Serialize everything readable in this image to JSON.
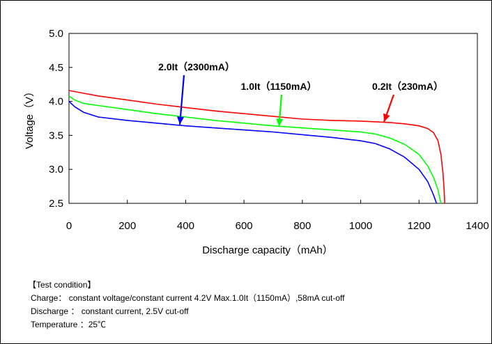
{
  "chart_data": {
    "type": "line",
    "title": "",
    "xlabel": "Discharge capacity（mAh）",
    "ylabel": "Voltage（V）",
    "xlim": [
      0,
      1400
    ],
    "ylim": [
      2.5,
      5.0
    ],
    "x_ticks": [
      0,
      200,
      400,
      600,
      800,
      1000,
      1200,
      1400
    ],
    "y_ticks": [
      "2.5",
      "3.0",
      "3.5",
      "4.0",
      "4.5",
      "5.0"
    ],
    "grid": false,
    "series": [
      {
        "name": "0.2It（230mA）",
        "color": "#ff0000",
        "points": [
          [
            0,
            4.16
          ],
          [
            50,
            4.12
          ],
          [
            100,
            4.08
          ],
          [
            200,
            4.02
          ],
          [
            300,
            3.96
          ],
          [
            400,
            3.91
          ],
          [
            500,
            3.86
          ],
          [
            600,
            3.82
          ],
          [
            700,
            3.78
          ],
          [
            800,
            3.74
          ],
          [
            900,
            3.72
          ],
          [
            1000,
            3.71
          ],
          [
            1100,
            3.69
          ],
          [
            1150,
            3.67
          ],
          [
            1200,
            3.64
          ],
          [
            1230,
            3.6
          ],
          [
            1250,
            3.54
          ],
          [
            1265,
            3.42
          ],
          [
            1275,
            3.22
          ],
          [
            1282,
            2.95
          ],
          [
            1286,
            2.7
          ],
          [
            1288,
            2.5
          ]
        ]
      },
      {
        "name": "1.0It（1150mA）",
        "color": "#00ff00",
        "points": [
          [
            0,
            4.08
          ],
          [
            20,
            4.02
          ],
          [
            50,
            3.97
          ],
          [
            100,
            3.94
          ],
          [
            200,
            3.88
          ],
          [
            300,
            3.82
          ],
          [
            400,
            3.77
          ],
          [
            500,
            3.72
          ],
          [
            600,
            3.68
          ],
          [
            700,
            3.64
          ],
          [
            800,
            3.61
          ],
          [
            900,
            3.58
          ],
          [
            1000,
            3.55
          ],
          [
            1050,
            3.52
          ],
          [
            1100,
            3.46
          ],
          [
            1150,
            3.37
          ],
          [
            1200,
            3.22
          ],
          [
            1230,
            3.05
          ],
          [
            1250,
            2.88
          ],
          [
            1265,
            2.7
          ],
          [
            1275,
            2.5
          ]
        ]
      },
      {
        "name": "2.0It（2300mA）",
        "color": "#0000ff",
        "points": [
          [
            0,
            4.0
          ],
          [
            20,
            3.92
          ],
          [
            50,
            3.84
          ],
          [
            100,
            3.77
          ],
          [
            200,
            3.72
          ],
          [
            300,
            3.68
          ],
          [
            400,
            3.64
          ],
          [
            500,
            3.61
          ],
          [
            600,
            3.58
          ],
          [
            700,
            3.55
          ],
          [
            800,
            3.51
          ],
          [
            900,
            3.47
          ],
          [
            1000,
            3.42
          ],
          [
            1050,
            3.38
          ],
          [
            1100,
            3.3
          ],
          [
            1150,
            3.18
          ],
          [
            1200,
            3.0
          ],
          [
            1230,
            2.82
          ],
          [
            1250,
            2.62
          ],
          [
            1260,
            2.5
          ]
        ]
      }
    ],
    "annotations": [
      {
        "text": "2.0It（2300mA）",
        "color": "#0000ff",
        "target": [
          380,
          3.66
        ]
      },
      {
        "text": "1.0It（1150mA）",
        "color": "#00ff00",
        "target": [
          720,
          3.63
        ]
      },
      {
        "text": "0.2It（230mA）",
        "color": "#ff0000",
        "target": [
          1080,
          3.7
        ]
      }
    ]
  },
  "conditions": {
    "heading": "【Test condition】",
    "charge": "Charge： constant voltage/constant current 4.2V Max.1.0It（1150mA）,58mA cut-off",
    "discharge": "Discharge ： constant current, 2.5V cut-off",
    "temperature": "Temperature ：25℃"
  }
}
